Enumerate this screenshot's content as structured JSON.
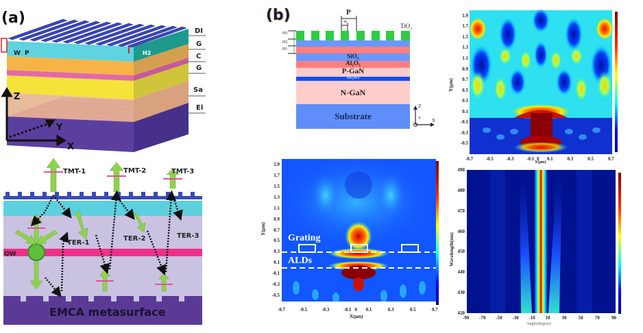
{
  "panel_a": {
    "label": "(a)",
    "structure_3d": {
      "dimension_labels": [
        "W",
        "P",
        "H2"
      ],
      "side_layer_labels": [
        "DI",
        "G",
        "C",
        "G",
        "Sa",
        "El"
      ],
      "axes": [
        "Z",
        "Y",
        "X"
      ]
    },
    "mechanism": {
      "transmission_labels": [
        "TMT-1",
        "TMT-2",
        "TMT-3"
      ],
      "reflection_labels": [
        "TER-1",
        "TER-2",
        "TER-3"
      ],
      "qw_label": "QW",
      "base_label": "EMCA metasurface"
    }
  },
  "panel_b": {
    "label": "(b)",
    "schematic": {
      "period_label": "P",
      "width_label": "w",
      "grating_material": "TiO2",
      "height_labels": [
        "H3",
        "H2",
        "H1"
      ],
      "layers": [
        "SiO2",
        "Al2O3",
        "P-GaN",
        "MQWs",
        "N-GaN",
        "Substrate"
      ],
      "axes": [
        "Z",
        "Y",
        "X"
      ]
    }
  },
  "chart_data": [
    {
      "type": "heatmap",
      "title": "",
      "xlabel": "X(μm)",
      "ylabel": "Y(μm)",
      "xlim": [
        -0.7,
        0.7
      ],
      "ylim": [
        -0.7,
        2.0
      ],
      "x_ticks": [
        "-0.7",
        "-0.5",
        "-0.3",
        "-0.1",
        "0",
        "0.1",
        "0.3",
        "0.5",
        "0.7"
      ],
      "y_ticks": [
        "1.9",
        "1.7",
        "1.5",
        "1.3",
        "1.1",
        "0.9",
        "0.7",
        "0.5",
        "0.3",
        "0.1",
        "-0.1",
        "-0.3",
        "-0.5"
      ],
      "colormap": "jet",
      "annotations": [
        "Grating",
        "ALDs"
      ],
      "grating_boxes_x": [
        -0.5,
        0,
        0.5
      ],
      "dashed_lines_y": [
        0.27,
        0.0
      ],
      "description": "Near-field |E| distribution with grating; strong hotspot above central grating at y≈0.5"
    },
    {
      "type": "heatmap",
      "title": "",
      "xlabel": "X(μm)",
      "ylabel": "Y(μm)",
      "xlim": [
        -0.7,
        0.7
      ],
      "ylim": [
        -0.7,
        2.0
      ],
      "x_ticks": [
        "-0.7",
        "-0.5",
        "-0.3",
        "-0.1",
        "0",
        "0.1",
        "0.3",
        "0.5",
        "0.7"
      ],
      "y_ticks": [
        "1.9",
        "1.7",
        "1.5",
        "1.3",
        "1.1",
        "0.9",
        "0.7",
        "0.5",
        "0.3",
        "0.1",
        "-0.1",
        "-0.3",
        "-0.5"
      ],
      "colormap": "jet",
      "description": "Field distribution without grating; interference lobes and strong source region below y≈0"
    },
    {
      "type": "heatmap",
      "title": "",
      "xlabel": "Angle(degree)",
      "ylabel": "Wavelength(nm)",
      "xlim": [
        -90,
        90
      ],
      "ylim": [
        420,
        490
      ],
      "x_ticks": [
        "-90",
        "-70",
        "-50",
        "-30",
        "-10",
        "10",
        "30",
        "50",
        "70",
        "90"
      ],
      "y_ticks": [
        "490",
        "480",
        "470",
        "460",
        "450",
        "440",
        "430",
        "420"
      ],
      "colormap": "jet",
      "description": "Far-field angular emission vs wavelength; dominant narrow lobe near 0°, weak side lobes near ±20–30° at short wavelengths"
    }
  ],
  "colors": {
    "jet_dark_blue": "#00008f",
    "jet_red": "#ff2000",
    "jet_dark_red": "#8b0000",
    "grating_green": "#2ecc40",
    "layer_blue": "#6a97ff",
    "layer_red": "#ff7f7f",
    "layer_pink": "#ffcccc",
    "mqw_blue": "#0d4fff",
    "emca_purple": "#5b3a96",
    "qw_pink": "#ef2f8a",
    "arrow_green": "#8fd14f"
  }
}
